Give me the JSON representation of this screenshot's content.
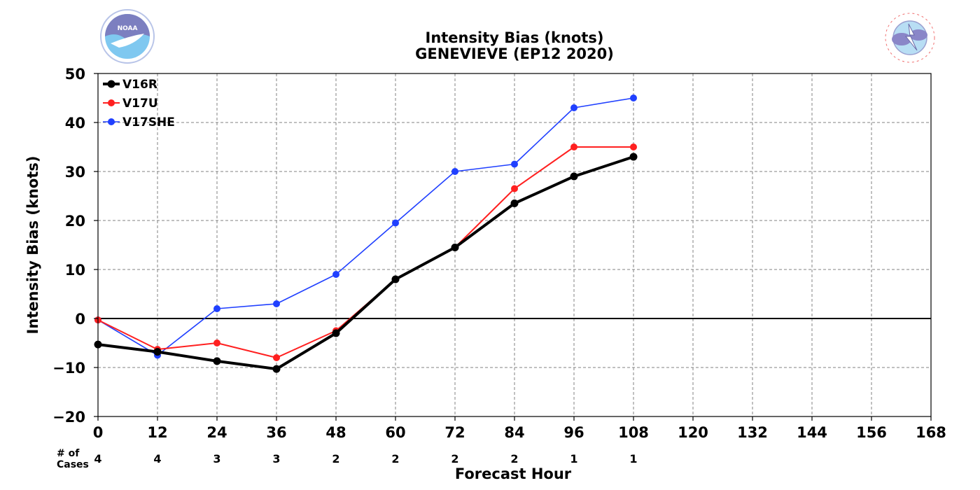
{
  "chart_data": {
    "type": "line",
    "title": "Intensity Bias (knots)",
    "subtitle": "GENEVIEVE (EP12 2020)",
    "xlabel": "Forecast Hour",
    "ylabel": "Intensity Bias (knots)",
    "xlim": [
      0,
      168
    ],
    "ylim": [
      -20,
      50
    ],
    "x_ticks": [
      0,
      12,
      24,
      36,
      48,
      60,
      72,
      84,
      96,
      108,
      120,
      132,
      144,
      156,
      168
    ],
    "x_tick_labels": [
      "0",
      "12",
      "24",
      "36",
      "48",
      "60",
      "72",
      "84",
      "96",
      "108",
      "120",
      "132",
      "144",
      "156",
      "168"
    ],
    "y_ticks": [
      -20,
      -10,
      0,
      10,
      20,
      30,
      40,
      50
    ],
    "y_tick_labels": [
      "−20",
      "−10",
      "0",
      "10",
      "20",
      "30",
      "40",
      "50"
    ],
    "grid": true,
    "legend_position": "top-left",
    "series": [
      {
        "name": "V16R",
        "color": "#000000",
        "x": [
          0,
          12,
          24,
          36,
          48,
          60,
          72,
          84,
          96,
          108
        ],
        "values": [
          -5.3,
          -6.8,
          -8.7,
          -10.3,
          -3.0,
          8.0,
          14.5,
          23.5,
          29.0,
          33.0
        ]
      },
      {
        "name": "V17U",
        "color": "#ff2020",
        "x": [
          0,
          12,
          24,
          36,
          48,
          60,
          72,
          84,
          96,
          108
        ],
        "values": [
          -0.3,
          -6.3,
          -5.0,
          -8.0,
          -2.5,
          8.0,
          14.5,
          26.5,
          35.0,
          35.0
        ]
      },
      {
        "name": "V17SHE",
        "color": "#2040ff",
        "x": [
          0,
          12,
          24,
          36,
          48,
          60,
          72,
          84,
          96,
          108
        ],
        "values": [
          -0.3,
          -7.5,
          2.0,
          3.0,
          9.0,
          19.5,
          30.0,
          31.5,
          43.0,
          45.0
        ]
      }
    ],
    "cases_label": [
      "# of",
      "Cases"
    ],
    "cases": [
      {
        "x": 0,
        "n": "4"
      },
      {
        "x": 12,
        "n": "4"
      },
      {
        "x": 24,
        "n": "3"
      },
      {
        "x": 36,
        "n": "3"
      },
      {
        "x": 48,
        "n": "2"
      },
      {
        "x": 60,
        "n": "2"
      },
      {
        "x": 72,
        "n": "2"
      },
      {
        "x": 84,
        "n": "2"
      },
      {
        "x": 96,
        "n": "1"
      },
      {
        "x": 108,
        "n": "1"
      }
    ]
  },
  "logos": {
    "left": {
      "name": "noaa-logo",
      "text": "NOAA"
    },
    "right": {
      "name": "nws-logo",
      "text": "NATIONAL WEATHER SERVICE"
    }
  }
}
